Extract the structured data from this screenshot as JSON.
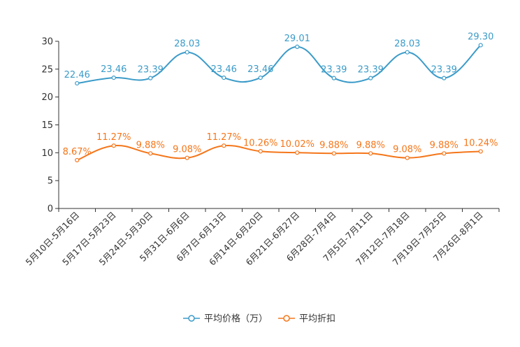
{
  "chart_data": {
    "type": "line",
    "title": "",
    "xlabel": "",
    "ylabel": "",
    "ylim": [
      0,
      30
    ],
    "yticks": [
      0,
      5,
      10,
      15,
      20,
      25,
      30
    ],
    "categories": [
      "5月10日-5月16日",
      "5月17日-5月23日",
      "5月24日-5月30日",
      "5月31日-6月6日",
      "6月7日-6月13日",
      "6月14日-6月20日",
      "6月21日-6月27日",
      "6月28日-7月4日",
      "7月5日-7月11日",
      "7月12日-7月18日",
      "7月19日-7月25日",
      "7月26日-8月1日"
    ],
    "series": [
      {
        "name": "平均价格（万）",
        "color": "#3b9bc9",
        "values": [
          22.46,
          23.46,
          23.39,
          28.03,
          23.46,
          23.46,
          29.01,
          23.39,
          23.39,
          28.03,
          23.39,
          29.3
        ],
        "labels": [
          "22.46",
          "23.46",
          "23.39",
          "28.03",
          "23.46",
          "23.46",
          "29.01",
          "23.39",
          "23.39",
          "28.03",
          "23.39",
          "29.30"
        ]
      },
      {
        "name": "平均折扣",
        "color": "#f5761a",
        "values": [
          8.67,
          11.27,
          9.88,
          9.08,
          11.27,
          10.26,
          10.02,
          9.88,
          9.88,
          9.08,
          9.88,
          10.24
        ],
        "labels": [
          "8.67%",
          "11.27%",
          "9.88%",
          "9.08%",
          "11.27%",
          "10.26%",
          "10.02%",
          "9.88%",
          "9.88%",
          "9.08%",
          "9.88%",
          "10.24%"
        ]
      }
    ],
    "legend_position": "bottom-center",
    "grid": false
  }
}
